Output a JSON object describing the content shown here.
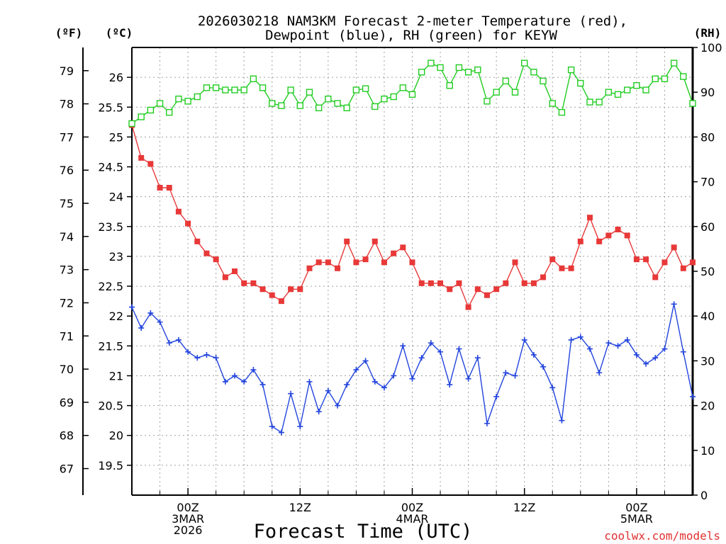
{
  "chart_data": {
    "type": "line",
    "title_line1": "2026030218 NAM3KM Forecast 2-meter Temperature (red),",
    "title_line2": "Dewpoint (blue), RH (green) for KEYW",
    "xlabel": "Forecast Time (UTC)",
    "credit": "coolwx.com/models",
    "unit_labels": {
      "fahrenheit": "(ºF)",
      "celsius": "(ºC)",
      "rh": "(RH)"
    },
    "x_hours_range": [
      0,
      60
    ],
    "celsius_range": [
      19.0,
      26.5
    ],
    "rh_range": [
      0,
      100
    ],
    "x_ticks": [
      {
        "hour": 6,
        "line1": "00Z",
        "line2": "3MAR",
        "line3": "2026"
      },
      {
        "hour": 18,
        "line1": "12Z",
        "line2": "",
        "line3": ""
      },
      {
        "hour": 30,
        "line1": "00Z",
        "line2": "4MAR",
        "line3": ""
      },
      {
        "hour": 42,
        "line1": "12Z",
        "line2": "",
        "line3": ""
      },
      {
        "hour": 54,
        "line1": "00Z",
        "line2": "5MAR",
        "line3": ""
      }
    ],
    "celsius_ticks": [
      "19.5",
      "20",
      "20.5",
      "21",
      "21.5",
      "22",
      "22.5",
      "23",
      "23.5",
      "24",
      "24.5",
      "25",
      "25.5",
      "26"
    ],
    "fahrenheit_ticks": [
      "67",
      "68",
      "69",
      "70",
      "71",
      "72",
      "73",
      "74",
      "75",
      "76",
      "77",
      "78",
      "79"
    ],
    "rh_ticks": [
      "0",
      "10",
      "20",
      "30",
      "40",
      "50",
      "60",
      "70",
      "80",
      "90",
      "100"
    ],
    "series": [
      {
        "name": "Temperature",
        "unit": "C",
        "color": "#e83838",
        "marker": "filled-square",
        "values": [
          25.2,
          24.65,
          24.55,
          24.15,
          24.15,
          23.75,
          23.55,
          23.25,
          23.05,
          22.95,
          22.65,
          22.75,
          22.55,
          22.55,
          22.45,
          22.35,
          22.25,
          22.45,
          22.45,
          22.8,
          22.9,
          22.9,
          22.8,
          23.25,
          22.9,
          22.95,
          23.25,
          22.9,
          23.05,
          23.15,
          22.9,
          22.55,
          22.55,
          22.55,
          22.45,
          22.55,
          22.15,
          22.45,
          22.35,
          22.45,
          22.55,
          22.9,
          22.55,
          22.55,
          22.65,
          22.95,
          22.8,
          22.8,
          23.25,
          23.65,
          23.25,
          23.35,
          23.45,
          23.35,
          22.95,
          22.95,
          22.65,
          22.9,
          23.15,
          22.8,
          22.9
        ]
      },
      {
        "name": "Dewpoint",
        "unit": "C",
        "color": "#2244dd",
        "marker": "plus",
        "values": [
          22.15,
          21.8,
          22.05,
          21.9,
          21.55,
          21.6,
          21.4,
          21.3,
          21.35,
          21.3,
          20.9,
          21.0,
          20.9,
          21.1,
          20.85,
          20.15,
          20.05,
          20.7,
          20.15,
          20.9,
          20.4,
          20.75,
          20.5,
          20.85,
          21.1,
          21.25,
          20.9,
          20.8,
          21.0,
          21.5,
          20.95,
          21.3,
          21.55,
          21.4,
          20.85,
          21.45,
          20.95,
          21.3,
          20.2,
          20.65,
          21.05,
          21.0,
          21.6,
          21.35,
          21.15,
          20.8,
          20.25,
          21.6,
          21.65,
          21.45,
          21.05,
          21.55,
          21.5,
          21.6,
          21.35,
          21.2,
          21.3,
          21.45,
          22.2,
          21.4,
          20.65
        ]
      },
      {
        "name": "RH",
        "unit": "%",
        "color": "#22cc22",
        "marker": "open-square",
        "values": [
          83,
          84.5,
          86,
          87.5,
          85.5,
          88.5,
          88,
          89,
          91,
          91,
          90.5,
          90.5,
          90.5,
          93,
          91,
          87.5,
          87,
          90.5,
          87,
          90,
          86.5,
          88.5,
          87.5,
          86.5,
          90.5,
          90.8,
          86.8,
          88.5,
          89,
          91,
          89.5,
          94.5,
          96.5,
          95.5,
          91.5,
          95.5,
          94.5,
          95,
          88,
          90,
          92.5,
          90,
          96.5,
          94.5,
          92.5,
          87.5,
          85.5,
          95,
          92,
          87.8,
          87.8,
          90,
          89.5,
          90.5,
          91.5,
          90.5,
          93,
          93,
          96.5,
          93.5,
          87.5
        ]
      }
    ]
  }
}
